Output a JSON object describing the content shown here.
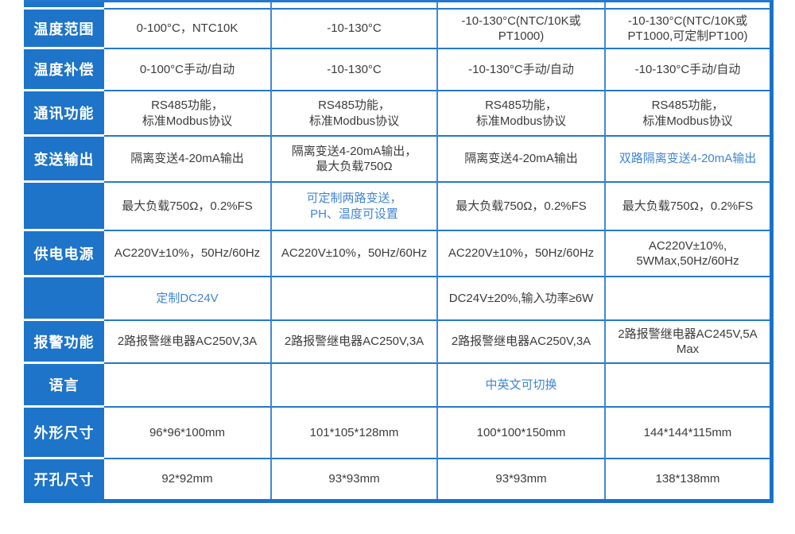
{
  "colors": {
    "header_blue": "#1d74c9",
    "border_blue": "#2478cd",
    "vertical_border_blue": "#4089d4",
    "outer_border_blue": "#1a72c8",
    "highlight_text_blue": "#3f85d6",
    "body_text": "#3c3c3c"
  },
  "table": {
    "rows": [
      {
        "header": "温度范围",
        "cells": [
          {
            "t": "0-100°C，NTC10K",
            "hl": false
          },
          {
            "t": "-10-130°C",
            "hl": false
          },
          {
            "t": "-10-130°C(NTC/10K或PT1000)",
            "hl": false
          },
          {
            "t": "-10-130°C(NTC/10K或\nPT1000,可定制PT100)",
            "hl": false
          }
        ]
      },
      {
        "header": "温度补偿",
        "cells": [
          {
            "t": "0-100°C手动/自动",
            "hl": false
          },
          {
            "t": "-10-130°C",
            "hl": false
          },
          {
            "t": "-10-130°C手动/自动",
            "hl": false
          },
          {
            "t": "-10-130°C手动/自动",
            "hl": false
          }
        ]
      },
      {
        "header": "通讯功能",
        "cells": [
          {
            "t": "RS485功能，\n标准Modbus协议",
            "hl": false
          },
          {
            "t": "RS485功能，\n标准Modbus协议",
            "hl": false
          },
          {
            "t": "RS485功能，\n标准Modbus协议",
            "hl": false
          },
          {
            "t": "RS485功能，\n标准Modbus协议",
            "hl": false
          }
        ]
      },
      {
        "header": "变送输出",
        "cells": [
          {
            "t": "隔离变送4-20mA输出",
            "hl": false
          },
          {
            "t": "隔离变送4-20mA输出，\n最大负载750Ω",
            "hl": false
          },
          {
            "t": "隔离变送4-20mA输出",
            "hl": false
          },
          {
            "t": "双路隔离变送4-20mA输出",
            "hl": true
          }
        ]
      },
      {
        "header": "",
        "cells": [
          {
            "t": "最大负载750Ω，0.2%FS",
            "hl": false
          },
          {
            "t": "可定制两路变送，\nPH、温度可设置",
            "hl": true
          },
          {
            "t": "最大负载750Ω，0.2%FS",
            "hl": false
          },
          {
            "t": "最大负载750Ω，0.2%FS",
            "hl": false
          }
        ]
      },
      {
        "header": "供电电源",
        "cells": [
          {
            "t": "AC220V±10%，50Hz/60Hz",
            "hl": false
          },
          {
            "t": "AC220V±10%，50Hz/60Hz",
            "hl": false
          },
          {
            "t": "AC220V±10%，50Hz/60Hz",
            "hl": false
          },
          {
            "t": "AC220V±10%,\n5WMax,50Hz/60Hz",
            "hl": false
          }
        ]
      },
      {
        "header": "",
        "cells": [
          {
            "t": "定制DC24V",
            "hl": true
          },
          {
            "t": "",
            "hl": false
          },
          {
            "t": "DC24V±20%,输入功率≥6W",
            "hl": false
          },
          {
            "t": "",
            "hl": false
          }
        ]
      },
      {
        "header": "报警功能",
        "cells": [
          {
            "t": "2路报警继电器AC250V,3A",
            "hl": false
          },
          {
            "t": "2路报警继电器AC250V,3A",
            "hl": false
          },
          {
            "t": "2路报警继电器AC250V,3A",
            "hl": false
          },
          {
            "t": "2路报警继电器AC245V,5A Max",
            "hl": false
          }
        ]
      },
      {
        "header": "语言",
        "cells": [
          {
            "t": "",
            "hl": false
          },
          {
            "t": "",
            "hl": false
          },
          {
            "t": "中英文可切换",
            "hl": true
          },
          {
            "t": "",
            "hl": false
          }
        ]
      },
      {
        "header": "外形尺寸",
        "cells": [
          {
            "t": "96*96*100mm",
            "hl": false
          },
          {
            "t": "101*105*128mm",
            "hl": false
          },
          {
            "t": "100*100*150mm",
            "hl": false
          },
          {
            "t": "144*144*115mm",
            "hl": false
          }
        ]
      },
      {
        "header": "开孔尺寸",
        "cells": [
          {
            "t": "92*92mm",
            "hl": false
          },
          {
            "t": "93*93mm",
            "hl": false
          },
          {
            "t": "93*93mm",
            "hl": false
          },
          {
            "t": "138*138mm",
            "hl": false
          }
        ]
      }
    ]
  }
}
